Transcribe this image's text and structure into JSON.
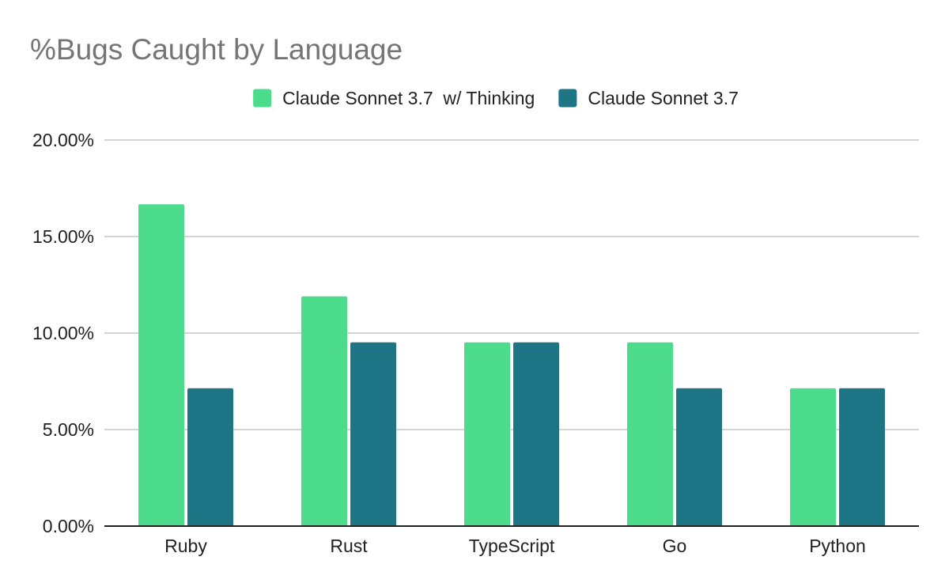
{
  "chart_data": {
    "type": "bar",
    "title": "%Bugs Caught by Language",
    "categories": [
      "Ruby",
      "Rust",
      "TypeScript",
      "Go",
      "Python"
    ],
    "series": [
      {
        "name": "Claude Sonnet 3.7  w/ Thinking",
        "color": "#4cdc8b",
        "values": [
          0.1667,
          0.119,
          0.0952,
          0.0952,
          0.0714
        ]
      },
      {
        "name": "Claude Sonnet 3.7",
        "color": "#1e7585",
        "values": [
          0.0714,
          0.0952,
          0.0952,
          0.0714,
          0.0714
        ]
      }
    ],
    "ylim": [
      0,
      0.2
    ],
    "yticks": [
      0,
      0.05,
      0.1,
      0.15,
      0.2
    ],
    "ytick_labels": [
      "0.00%",
      "5.00%",
      "10.00%",
      "15.00%",
      "20.00%"
    ],
    "xlabel": "",
    "ylabel": "",
    "grid": true,
    "legend_position": "top-center"
  },
  "colors": {
    "title": "#757575",
    "gridline": "#c6c6c6",
    "axis": "#222222",
    "text": "#222222"
  }
}
